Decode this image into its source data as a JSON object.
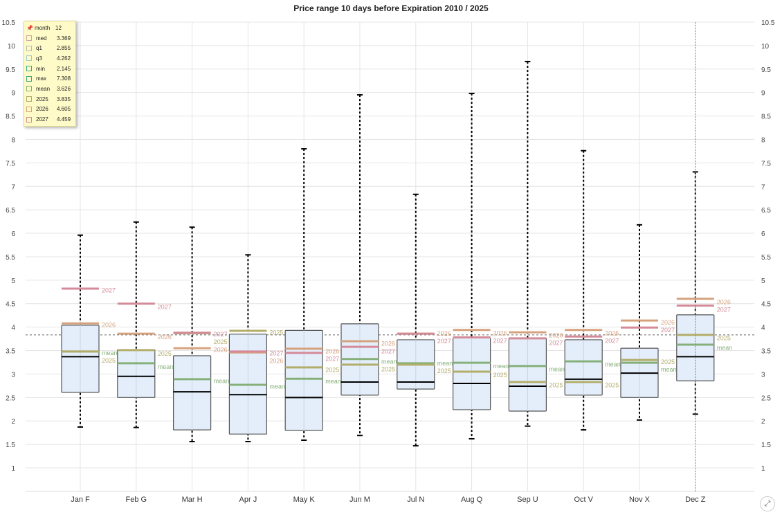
{
  "chart_data": {
    "type": "boxplot",
    "title": "Price range 10 days before Expiration 2010 / 2025",
    "categories": [
      "Jan F",
      "Feb G",
      "Mar H",
      "Apr J",
      "May K",
      "Jun M",
      "Jul N",
      "Aug Q",
      "Sep U",
      "Oct V",
      "Nov X",
      "Dec Z"
    ],
    "ylim": [
      0.5,
      10.5
    ],
    "yticks": [
      1,
      1.5,
      2,
      2.5,
      3,
      3.5,
      4,
      4.5,
      5,
      5.5,
      6,
      6.5,
      7,
      7.5,
      8,
      8.5,
      9,
      9.5,
      10,
      10.5
    ],
    "reference_line": 3.835,
    "cursor_category": "Dec Z",
    "series": {
      "min": [
        1.87,
        1.86,
        1.56,
        1.56,
        1.59,
        1.69,
        1.47,
        1.62,
        1.89,
        1.81,
        2.02,
        2.145
      ],
      "q1": [
        2.61,
        2.5,
        1.81,
        1.72,
        1.8,
        2.55,
        2.68,
        2.24,
        2.21,
        2.55,
        2.5,
        2.855
      ],
      "med": [
        3.37,
        2.95,
        2.62,
        2.56,
        2.5,
        2.83,
        2.83,
        2.8,
        2.74,
        2.89,
        3.02,
        3.369
      ],
      "q3": [
        4.04,
        3.52,
        3.39,
        3.85,
        3.93,
        4.07,
        3.73,
        3.77,
        3.77,
        3.73,
        3.55,
        4.262
      ],
      "max": [
        5.96,
        6.24,
        6.13,
        5.54,
        7.8,
        8.95,
        6.83,
        8.98,
        9.66,
        7.76,
        6.18,
        7.308
      ],
      "mean": [
        3.48,
        3.23,
        2.89,
        2.77,
        2.9,
        3.32,
        3.23,
        3.24,
        3.17,
        3.27,
        3.24,
        3.626
      ],
      "2025": [
        3.48,
        3.51,
        3.87,
        3.92,
        3.14,
        3.2,
        3.2,
        3.05,
        2.83,
        2.83,
        3.3,
        3.835
      ],
      "2026": [
        4.08,
        3.86,
        3.55,
        3.46,
        3.54,
        3.7,
        3.86,
        3.94,
        3.89,
        3.94,
        4.14,
        4.605
      ],
      "2027": [
        4.82,
        4.5,
        3.88,
        3.48,
        3.45,
        3.58,
        3.86,
        3.78,
        3.76,
        3.8,
        3.99,
        4.459
      ]
    },
    "marker_labels": {
      "mean": "mean",
      "2025": "2025",
      "2026": "2026",
      "2027": "2027"
    },
    "colors": {
      "box_fill": "#e3eefa",
      "box_stroke": "#555555",
      "median": "#000000",
      "mean": "#86b07a",
      "2025": "#b3ad6a",
      "2026": "#d6a27e",
      "2027": "#d48a98",
      "grid": "#e4e4e4",
      "cursor": "#5a9a9a"
    },
    "legend": {
      "rows": [
        {
          "key": "month",
          "value": "12",
          "color": ""
        },
        {
          "key": "med",
          "value": "3.369",
          "color": "#d0a8a8"
        },
        {
          "key": "q1",
          "value": "2.855",
          "color": "#b8b8b8"
        },
        {
          "key": "q3",
          "value": "4.262",
          "color": "#9cc8d0"
        },
        {
          "key": "min",
          "value": "2.145",
          "color": "#3aa88c"
        },
        {
          "key": "max",
          "value": "7.308",
          "color": "#3aa88c"
        },
        {
          "key": "mean",
          "value": "3.626",
          "color": "#86b07a"
        },
        {
          "key": "2025",
          "value": "3.835",
          "color": "#b3ad6a"
        },
        {
          "key": "2026",
          "value": "4.605",
          "color": "#d6a27e"
        },
        {
          "key": "2027",
          "value": "4.459",
          "color": "#d48a98"
        }
      ]
    }
  },
  "ui": {
    "expand_icon": "expand-icon"
  }
}
